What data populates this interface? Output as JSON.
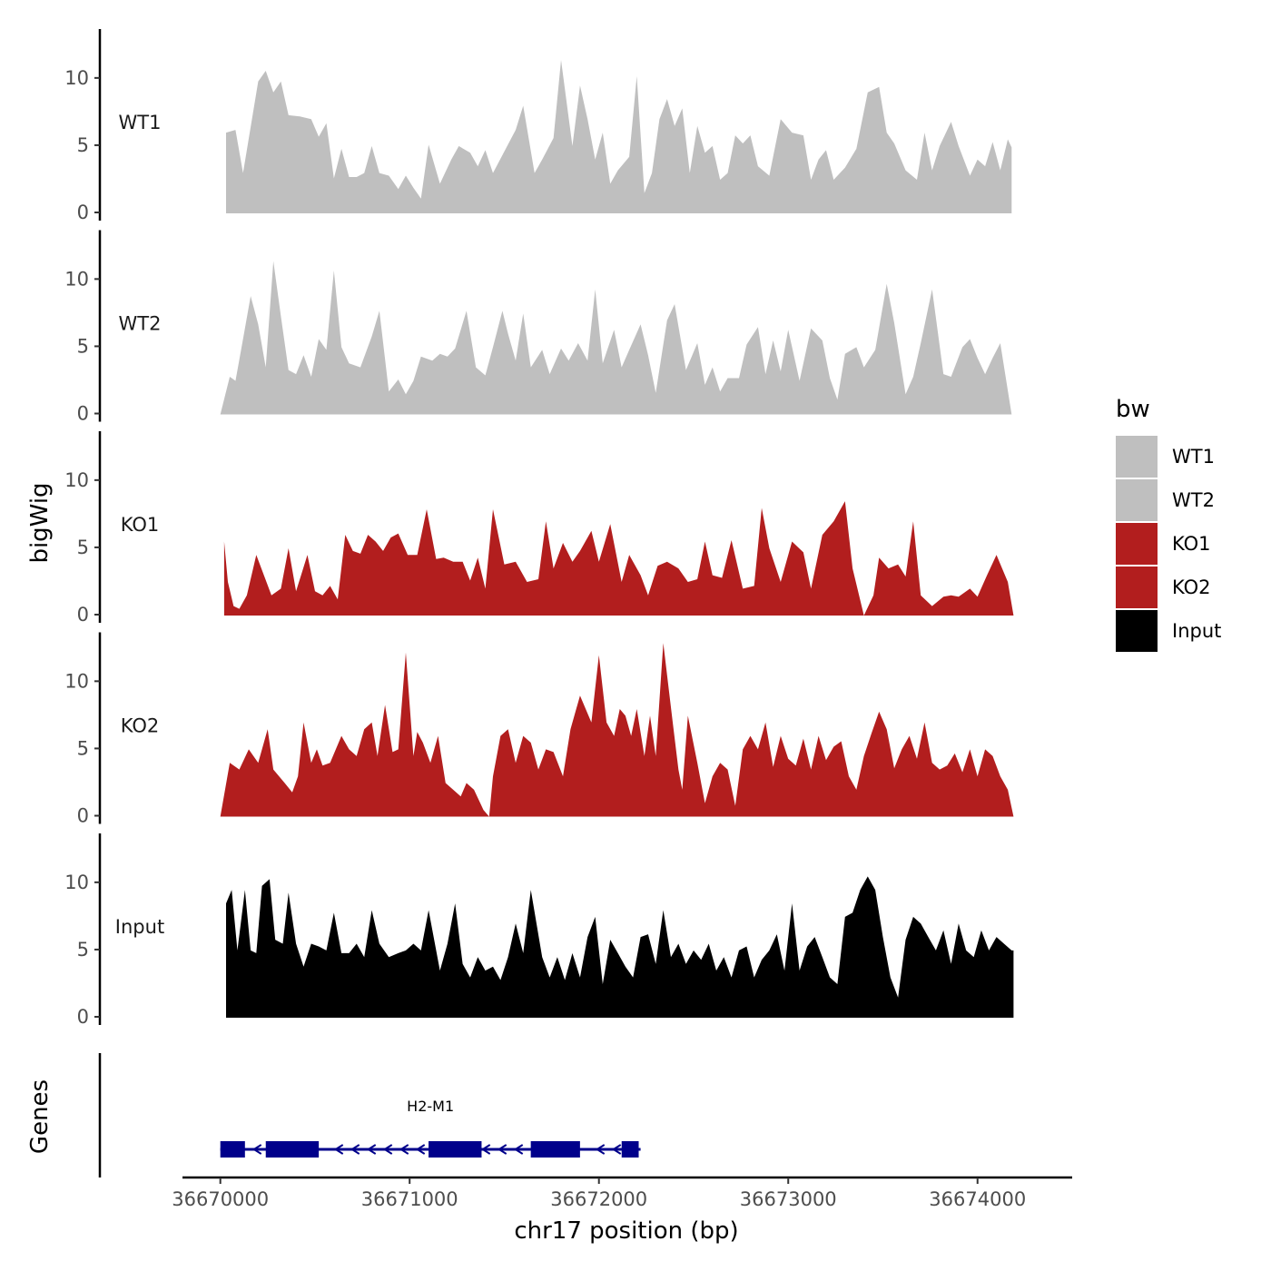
{
  "chart_data": {
    "type": "area",
    "ylabel": "bigWig",
    "xlabel": "chr17 position (bp)",
    "xlim": [
      36669800,
      36674500
    ],
    "x_ticks": [
      36670000,
      36671000,
      36672000,
      36673000,
      36674000
    ],
    "x_tick_labels": [
      "36670000",
      "36671000",
      "36672000",
      "36673000",
      "36674000"
    ],
    "ylim": [
      0,
      13.5
    ],
    "y_ticks": [
      0,
      5,
      10
    ],
    "y_tick_labels": [
      "0",
      "5",
      "10"
    ],
    "legend": {
      "title": "bw",
      "position": "right",
      "entries": [
        {
          "label": "WT1",
          "color": "#bfbfbf"
        },
        {
          "label": "WT2",
          "color": "#bfbfbf"
        },
        {
          "label": "KO1",
          "color": "#b21e1e"
        },
        {
          "label": "KO2",
          "color": "#b21e1e"
        },
        {
          "label": "Input",
          "color": "#000000"
        }
      ]
    },
    "series": [
      {
        "name": "WT1",
        "color": "#bfbfbf",
        "x": [
          36670030,
          36670080,
          36670120,
          36670200,
          36670240,
          36670280,
          36670320,
          36670360,
          36670420,
          36670480,
          36670520,
          36670560,
          36670600,
          36670640,
          36670680,
          36670720,
          36670760,
          36670800,
          36670840,
          36670890,
          36670940,
          36670980,
          36671020,
          36671060,
          36671100,
          36671160,
          36671220,
          36671260,
          36671320,
          36671360,
          36671400,
          36671440,
          36671500,
          36671560,
          36671600,
          36671660,
          36671700,
          36671760,
          36671800,
          36671860,
          36671900,
          36671940,
          36671980,
          36672020,
          36672060,
          36672100,
          36672160,
          36672200,
          36672240,
          36672280,
          36672320,
          36672360,
          36672400,
          36672440,
          36672480,
          36672520,
          36672560,
          36672600,
          36672640,
          36672680,
          36672720,
          36672760,
          36672800,
          36672840,
          36672900,
          36672960,
          36673020,
          36673080,
          36673120,
          36673160,
          36673200,
          36673240,
          36673300,
          36673360,
          36673420,
          36673480,
          36673520,
          36673560,
          36673620,
          36673680,
          36673720,
          36673760,
          36673800,
          36673860,
          36673900,
          36673960,
          36674000,
          36674040,
          36674080,
          36674120,
          36674160,
          36674180
        ],
        "values": [
          6.0,
          6.2,
          3.0,
          9.8,
          10.6,
          9.0,
          9.8,
          7.3,
          7.2,
          7.0,
          5.7,
          6.7,
          2.6,
          4.8,
          2.7,
          2.7,
          3.0,
          5.0,
          3.0,
          2.8,
          1.8,
          2.8,
          1.9,
          1.1,
          5.1,
          2.2,
          4.0,
          5.0,
          4.5,
          3.5,
          4.7,
          3.0,
          4.6,
          6.2,
          8.0,
          3.0,
          4.0,
          5.6,
          11.4,
          5.0,
          9.5,
          7.0,
          4.0,
          6.0,
          2.2,
          3.2,
          4.2,
          10.2,
          1.5,
          3.0,
          7.0,
          8.5,
          6.5,
          7.8,
          3.0,
          6.5,
          4.5,
          5.0,
          2.5,
          3.0,
          5.8,
          5.2,
          5.8,
          3.5,
          2.8,
          7.0,
          6.0,
          5.8,
          2.5,
          4.0,
          4.7,
          2.5,
          3.4,
          4.8,
          9.0,
          9.4,
          6.0,
          5.2,
          3.2,
          2.5,
          6.0,
          3.2,
          5.0,
          6.8,
          5.0,
          2.8,
          4.0,
          3.5,
          5.3,
          3.2,
          5.5,
          4.9
        ]
      },
      {
        "name": "WT2",
        "color": "#bfbfbf",
        "x": [
          36670000,
          36670050,
          36670080,
          36670120,
          36670160,
          36670200,
          36670240,
          36670280,
          36670320,
          36670360,
          36670400,
          36670440,
          36670480,
          36670520,
          36670560,
          36670600,
          36670640,
          36670680,
          36670740,
          36670800,
          36670840,
          36670890,
          36670940,
          36670980,
          36671020,
          36671060,
          36671120,
          36671160,
          36671200,
          36671240,
          36671300,
          36671350,
          36671400,
          36671440,
          36671490,
          36671520,
          36671560,
          36671600,
          36671640,
          36671700,
          36671740,
          36671800,
          36671840,
          36671890,
          36671940,
          36671980,
          36672020,
          36672080,
          36672120,
          36672160,
          36672220,
          36672260,
          36672300,
          36672360,
          36672400,
          36672460,
          36672520,
          36672560,
          36672600,
          36672640,
          36672680,
          36672740,
          36672780,
          36672840,
          36672880,
          36672920,
          36672960,
          36673000,
          36673060,
          36673120,
          36673180,
          36673220,
          36673260,
          36673300,
          36673360,
          36673400,
          36673460,
          36673520,
          36673560,
          36673620,
          36673660,
          36673700,
          36673760,
          36673820,
          36673860,
          36673920,
          36673960,
          36674000,
          36674040,
          36674080,
          36674120,
          36674180
        ],
        "values": [
          0.0,
          2.8,
          2.5,
          5.6,
          8.8,
          6.7,
          3.5,
          11.4,
          7.3,
          3.3,
          3.0,
          4.4,
          2.8,
          5.6,
          4.8,
          10.7,
          5.0,
          3.8,
          3.5,
          5.8,
          7.7,
          1.7,
          2.6,
          1.5,
          2.5,
          4.3,
          4.0,
          4.5,
          4.3,
          4.9,
          7.7,
          3.5,
          2.9,
          5.0,
          7.7,
          6.0,
          4.0,
          7.5,
          3.5,
          4.8,
          3.0,
          4.9,
          4.0,
          5.3,
          4.0,
          9.3,
          3.8,
          6.3,
          3.5,
          4.8,
          6.7,
          4.4,
          1.6,
          7.0,
          8.2,
          3.3,
          5.3,
          2.2,
          3.5,
          1.7,
          2.7,
          2.7,
          5.2,
          6.5,
          3.0,
          5.5,
          3.2,
          6.3,
          2.5,
          6.4,
          5.5,
          2.7,
          1.1,
          4.5,
          5.0,
          3.5,
          4.8,
          9.7,
          6.8,
          1.5,
          2.8,
          5.3,
          9.3,
          3.0,
          2.8,
          5.0,
          5.6,
          4.2,
          3.0,
          4.2,
          5.3,
          0.0
        ]
      },
      {
        "name": "KO1",
        "color": "#b21e1e",
        "x": [
          36670020,
          36670040,
          36670070,
          36670100,
          36670140,
          36670190,
          36670230,
          36670270,
          36670320,
          36670360,
          36670400,
          36670460,
          36670500,
          36670540,
          36670580,
          36670620,
          36670660,
          36670700,
          36670740,
          36670780,
          36670820,
          36670860,
          36670900,
          36670940,
          36670990,
          36671040,
          36671090,
          36671140,
          36671180,
          36671230,
          36671280,
          36671320,
          36671360,
          36671400,
          36671440,
          36671500,
          36671560,
          36671620,
          36671680,
          36671720,
          36671760,
          36671810,
          36671860,
          36671900,
          36671960,
          36672000,
          36672060,
          36672120,
          36672160,
          36672220,
          36672260,
          36672310,
          36672360,
          36672420,
          36672470,
          36672520,
          36672560,
          36672600,
          36672650,
          36672700,
          36672760,
          36672820,
          36672860,
          36672900,
          36672960,
          36673020,
          36673080,
          36673120,
          36673180,
          36673240,
          36673300,
          36673340,
          36673400,
          36673450,
          36673480,
          36673530,
          36673580,
          36673620,
          36673660,
          36673700,
          36673760,
          36673820,
          36673860,
          36673900,
          36673960,
          36674000,
          36674050,
          36674100,
          36674160,
          36674190
        ],
        "values": [
          5.5,
          2.5,
          0.7,
          0.5,
          1.5,
          4.5,
          3.0,
          1.5,
          2.0,
          5.0,
          1.8,
          4.5,
          1.8,
          1.5,
          2.2,
          1.2,
          6.0,
          4.8,
          4.6,
          6.0,
          5.5,
          4.8,
          5.8,
          6.1,
          4.5,
          4.5,
          7.9,
          4.2,
          4.3,
          4.0,
          4.0,
          2.6,
          4.3,
          2.0,
          7.9,
          3.8,
          4.0,
          2.5,
          2.7,
          7.0,
          3.5,
          5.4,
          4.0,
          4.8,
          6.3,
          4.0,
          6.8,
          2.5,
          4.5,
          3.0,
          1.5,
          3.7,
          4.0,
          3.5,
          2.5,
          2.7,
          5.5,
          3.0,
          2.8,
          5.6,
          2.0,
          2.2,
          8.0,
          5.0,
          2.5,
          5.5,
          4.7,
          2.0,
          6.0,
          7.0,
          8.5,
          3.5,
          0.0,
          1.5,
          4.3,
          3.5,
          3.8,
          2.9,
          7.0,
          1.5,
          0.7,
          1.4,
          1.5,
          1.4,
          2.0,
          1.4,
          3.0,
          4.5,
          2.5,
          0.0
        ]
      },
      {
        "name": "KO2",
        "color": "#b21e1e",
        "x": [
          36670000,
          36670050,
          36670100,
          36670150,
          36670200,
          36670250,
          36670280,
          36670340,
          36670380,
          36670410,
          36670440,
          36670480,
          36670510,
          36670540,
          36670580,
          36670640,
          36670680,
          36670720,
          36670760,
          36670800,
          36670830,
          36670870,
          36670910,
          36670940,
          36670980,
          36671020,
          36671040,
          36671070,
          36671110,
          36671150,
          36671190,
          36671230,
          36671270,
          36671300,
          36671340,
          36671390,
          36671420,
          36671440,
          36671480,
          36671520,
          36671560,
          36671600,
          36671640,
          36671680,
          36671720,
          36671760,
          36671810,
          36671850,
          36671900,
          36671960,
          36672000,
          36672040,
          36672080,
          36672110,
          36672140,
          36672170,
          36672200,
          36672240,
          36672270,
          36672300,
          36672340,
          36672390,
          36672420,
          36672440,
          36672470,
          36672520,
          36672560,
          36672600,
          36672640,
          36672680,
          36672720,
          36672760,
          36672800,
          36672840,
          36672880,
          36672920,
          36672960,
          36673000,
          36673040,
          36673080,
          36673120,
          36673160,
          36673200,
          36673240,
          36673280,
          36673320,
          36673360,
          36673400,
          36673440,
          36673480,
          36673520,
          36673560,
          36673600,
          36673640,
          36673680,
          36673720,
          36673760,
          36673800,
          36673840,
          36673880,
          36673920,
          36673960,
          36674000,
          36674040,
          36674080,
          36674120,
          36674160,
          36674190
        ],
        "values": [
          0.0,
          4.0,
          3.5,
          5.0,
          4.0,
          6.5,
          3.5,
          2.5,
          1.8,
          3.0,
          7.0,
          4.0,
          5.0,
          3.8,
          4.0,
          6.0,
          5.0,
          4.5,
          6.5,
          7.0,
          4.5,
          8.3,
          4.8,
          5.0,
          12.2,
          4.5,
          6.3,
          5.5,
          4.0,
          6.0,
          2.5,
          2.0,
          1.5,
          2.5,
          2.0,
          0.5,
          0.0,
          3.0,
          6.0,
          6.5,
          4.0,
          6.0,
          5.5,
          3.5,
          5.0,
          4.8,
          3.0,
          6.5,
          9.0,
          7.0,
          12.0,
          7.0,
          6.0,
          8.0,
          7.5,
          6.0,
          8.0,
          4.5,
          7.5,
          4.5,
          12.9,
          7.0,
          3.5,
          2.0,
          7.5,
          4.0,
          1.0,
          3.0,
          4.0,
          3.5,
          0.8,
          5.0,
          6.0,
          5.0,
          7.0,
          3.7,
          6.0,
          4.3,
          3.8,
          5.8,
          3.5,
          6.0,
          4.2,
          5.2,
          5.6,
          3.0,
          2.0,
          4.5,
          6.2,
          7.8,
          6.5,
          3.6,
          5.0,
          6.0,
          4.3,
          7.0,
          4.0,
          3.5,
          3.8,
          4.7,
          3.3,
          5.0,
          3.0,
          5.0,
          4.5,
          3.0,
          2.0,
          0.0
        ]
      },
      {
        "name": "Input",
        "color": "#000000",
        "x": [
          36670030,
          36670060,
          36670090,
          36670130,
          36670160,
          36670190,
          36670220,
          36670260,
          36670290,
          36670330,
          36670360,
          36670400,
          36670440,
          36670480,
          36670520,
          36670560,
          36670600,
          36670640,
          36670680,
          36670720,
          36670760,
          36670800,
          36670840,
          36670890,
          36670940,
          36670980,
          36671020,
          36671060,
          36671100,
          36671160,
          36671200,
          36671240,
          36671280,
          36671320,
          36671360,
          36671400,
          36671440,
          36671480,
          36671520,
          36671560,
          36671600,
          36671640,
          36671700,
          36671740,
          36671780,
          36671820,
          36671860,
          36671900,
          36671940,
          36671980,
          36672020,
          36672060,
          36672100,
          36672140,
          36672180,
          36672220,
          36672260,
          36672300,
          36672340,
          36672380,
          36672420,
          36672460,
          36672500,
          36672540,
          36672580,
          36672620,
          36672660,
          36672700,
          36672740,
          36672780,
          36672820,
          36672860,
          36672900,
          36672940,
          36672980,
          36673020,
          36673060,
          36673100,
          36673140,
          36673180,
          36673220,
          36673260,
          36673300,
          36673340,
          36673380,
          36673420,
          36673460,
          36673500,
          36673540,
          36673580,
          36673620,
          36673660,
          36673700,
          36673740,
          36673780,
          36673820,
          36673860,
          36673900,
          36673940,
          36673980,
          36674020,
          36674060,
          36674100,
          36674140,
          36674180,
          36674190
        ],
        "values": [
          8.5,
          9.5,
          5.0,
          9.5,
          5.0,
          4.8,
          9.8,
          10.3,
          5.8,
          5.5,
          9.3,
          5.5,
          3.8,
          5.5,
          5.3,
          5.0,
          7.8,
          4.8,
          4.8,
          5.5,
          4.5,
          8.0,
          5.5,
          4.5,
          4.8,
          5.0,
          5.5,
          5.0,
          8.0,
          3.5,
          5.5,
          8.5,
          4.0,
          3.0,
          4.5,
          3.5,
          3.8,
          2.8,
          4.5,
          7.0,
          4.8,
          9.5,
          4.5,
          3.0,
          4.5,
          2.8,
          4.8,
          3.0,
          6.0,
          7.5,
          2.5,
          5.8,
          4.8,
          3.8,
          3.0,
          6.0,
          6.2,
          4.0,
          8.0,
          4.5,
          5.5,
          4.0,
          5.0,
          4.3,
          5.5,
          3.5,
          4.5,
          3.0,
          5.0,
          5.3,
          3.0,
          4.3,
          5.0,
          6.2,
          3.5,
          8.5,
          3.5,
          5.3,
          6.0,
          4.5,
          3.0,
          2.5,
          7.5,
          7.8,
          9.5,
          10.5,
          9.5,
          6.0,
          3.0,
          1.5,
          5.8,
          7.5,
          7.0,
          6.0,
          5.0,
          6.5,
          4.0,
          7.0,
          5.0,
          4.5,
          6.5,
          5.0,
          6.0,
          5.5,
          5.0,
          5.0
        ]
      }
    ],
    "genes": [
      {
        "name": "H2-M1",
        "strand": "-",
        "start": 36670000,
        "end": 36672220,
        "exons": [
          [
            36670000,
            36670130
          ],
          [
            36670240,
            36670520
          ],
          [
            36671100,
            36671380
          ],
          [
            36671640,
            36671900
          ],
          [
            36672120,
            36672210
          ]
        ]
      }
    ],
    "gene_track_label": "Genes"
  }
}
